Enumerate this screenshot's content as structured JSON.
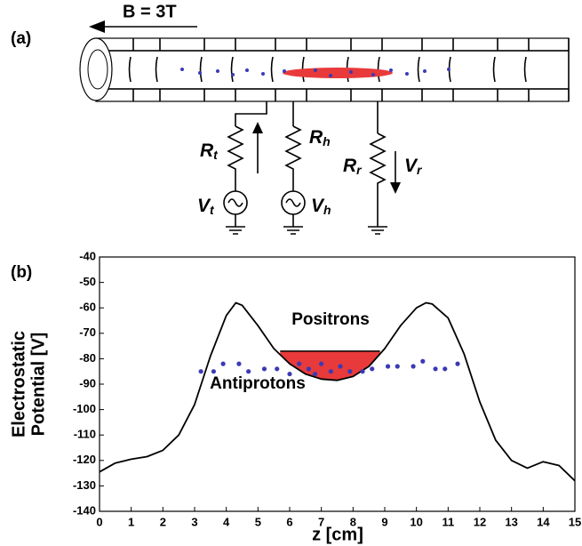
{
  "diagram": {
    "panel_label": "(a)",
    "field": "B = 3T",
    "components": [
      {
        "main": "R",
        "sub": "t"
      },
      {
        "main": "R",
        "sub": "h"
      },
      {
        "main": "R",
        "sub": "r"
      },
      {
        "main": "V",
        "sub": "t"
      },
      {
        "main": "V",
        "sub": "h"
      },
      {
        "main": "V",
        "sub": "r"
      }
    ]
  },
  "chart_data": {
    "type": "line",
    "panel_label": "(b)",
    "ylabel": [
      "Electrostatic",
      "Potential [V]"
    ],
    "xlabel": "z [cm]",
    "xlim": [
      0,
      15
    ],
    "ylim": [
      -140,
      -40
    ],
    "xticks": [
      0,
      1,
      2,
      3,
      4,
      5,
      6,
      7,
      8,
      9,
      10,
      11,
      12,
      13,
      14,
      15
    ],
    "yticks": [
      -40,
      -50,
      -60,
      -70,
      -80,
      -90,
      -100,
      -110,
      -120,
      -130,
      -140
    ],
    "annotations": [
      "Positrons",
      "Antiprotons"
    ],
    "series": [
      {
        "type": "line",
        "color": "#000000",
        "x": [
          0,
          0.5,
          1,
          1.5,
          2,
          2.5,
          3,
          3.5,
          4,
          4.3,
          4.5,
          5,
          5.5,
          6,
          6.5,
          7,
          7.5,
          8,
          8.5,
          9,
          9.5,
          10,
          10.3,
          10.5,
          11,
          11.5,
          12,
          12.5,
          13,
          13.5,
          14,
          14.5,
          15
        ],
        "values": [
          -124.5,
          -121,
          -119.5,
          -118.5,
          -116,
          -110,
          -98,
          -79,
          -63,
          -58,
          -59,
          -67,
          -76,
          -82,
          -86,
          -88,
          -88.5,
          -87,
          -83,
          -76,
          -67,
          -60,
          -58,
          -58.5,
          -64,
          -78,
          -97,
          -112,
          -120,
          -123,
          -120.5,
          -122,
          -128
        ]
      },
      {
        "type": "scatter",
        "color": "#3a3ab4",
        "x": [
          3.2,
          3.6,
          3.9,
          4.4,
          4.7,
          5.2,
          5.6,
          6.0,
          6.3,
          6.6,
          6.8,
          7.0,
          7.3,
          7.6,
          7.9,
          8.3,
          8.6,
          9.1,
          9.4,
          9.9,
          10.2,
          10.6,
          10.9,
          11.3
        ],
        "values": [
          -85,
          -85,
          -82,
          -82,
          -85,
          -84,
          -84,
          -86,
          -82,
          -84,
          -86,
          -82,
          -85,
          -83,
          -85,
          -85,
          -84,
          -83,
          -83,
          -83,
          -81,
          -84,
          -84,
          -82
        ]
      }
    ],
    "positron_fill": {
      "level": -77,
      "xrange": [
        5.7,
        8.85
      ],
      "color": "#e83a3a"
    }
  }
}
